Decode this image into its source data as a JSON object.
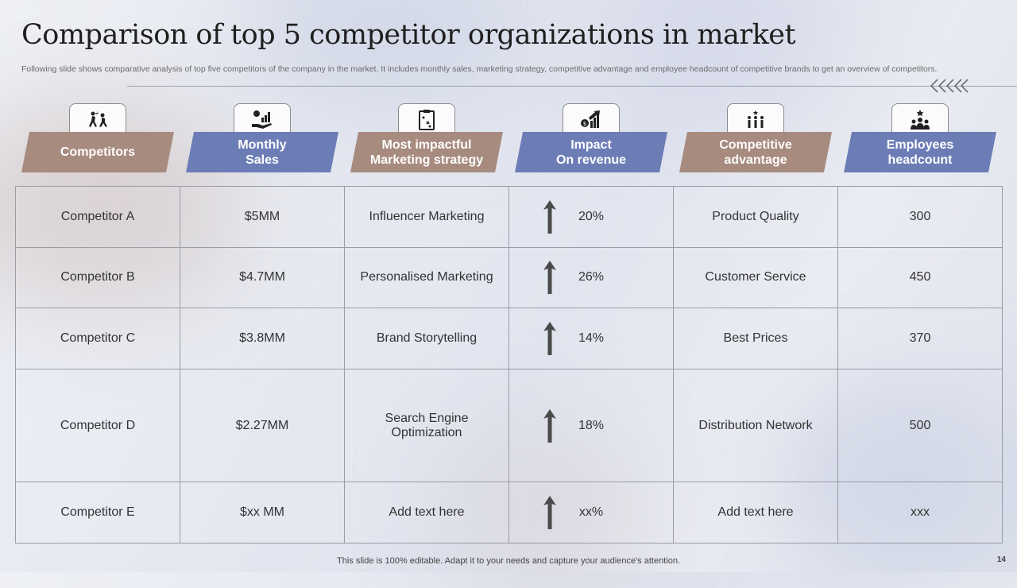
{
  "title": "Comparison of top 5 competitor organizations in market",
  "subtitle": "Following slide shows comparative analysis of top five competitors of the company in the market. It includes monthly sales, marketing strategy,  competitive advantage and employee headcount of competitive brands to get an overview of competitors.",
  "headers": [
    {
      "label": "Competitors",
      "icon": "competition-icon",
      "color": "#a88b7f"
    },
    {
      "label": "Monthly\nSales",
      "icon": "money-hand-chart-icon",
      "color": "#6c7db6"
    },
    {
      "label": "Most impactful\nMarketing strategy",
      "icon": "strategy-board-icon",
      "color": "#a88b7f"
    },
    {
      "label": "Impact\nOn revenue",
      "icon": "revenue-growth-icon",
      "color": "#6c7db6"
    },
    {
      "label": "Competitive\nadvantage",
      "icon": "advantage-people-icon",
      "color": "#a88b7f"
    },
    {
      "label": "Employees\nheadcount",
      "icon": "team-icon",
      "color": "#6c7db6"
    }
  ],
  "rows": [
    {
      "competitor": "Competitor A",
      "sales": "$5MM",
      "strategy": "Influencer  Marketing",
      "impact": "20%",
      "advantage": "Product Quality",
      "headcount": "300"
    },
    {
      "competitor": "Competitor B",
      "sales": "$4.7MM",
      "strategy": "Personalised Marketing",
      "impact": "26%",
      "advantage": "Customer Service",
      "headcount": "450"
    },
    {
      "competitor": "Competitor C",
      "sales": "$3.8MM",
      "strategy": "Brand Storytelling",
      "impact": "14%",
      "advantage": "Best Prices",
      "headcount": "370"
    },
    {
      "competitor": "Competitor D",
      "sales": "$2.27MM",
      "strategy": "Search Engine\nOptimization",
      "impact": "18%",
      "advantage": "Distribution Network",
      "headcount": "500"
    },
    {
      "competitor": "Competitor E",
      "sales": "$xx MM",
      "strategy": "Add text here",
      "impact": "xx%",
      "advantage": "Add text here",
      "headcount": "xxx"
    }
  ],
  "footer": "This slide is 100% editable. Adapt it to your needs and capture your audience's attention.",
  "page_number": "14"
}
